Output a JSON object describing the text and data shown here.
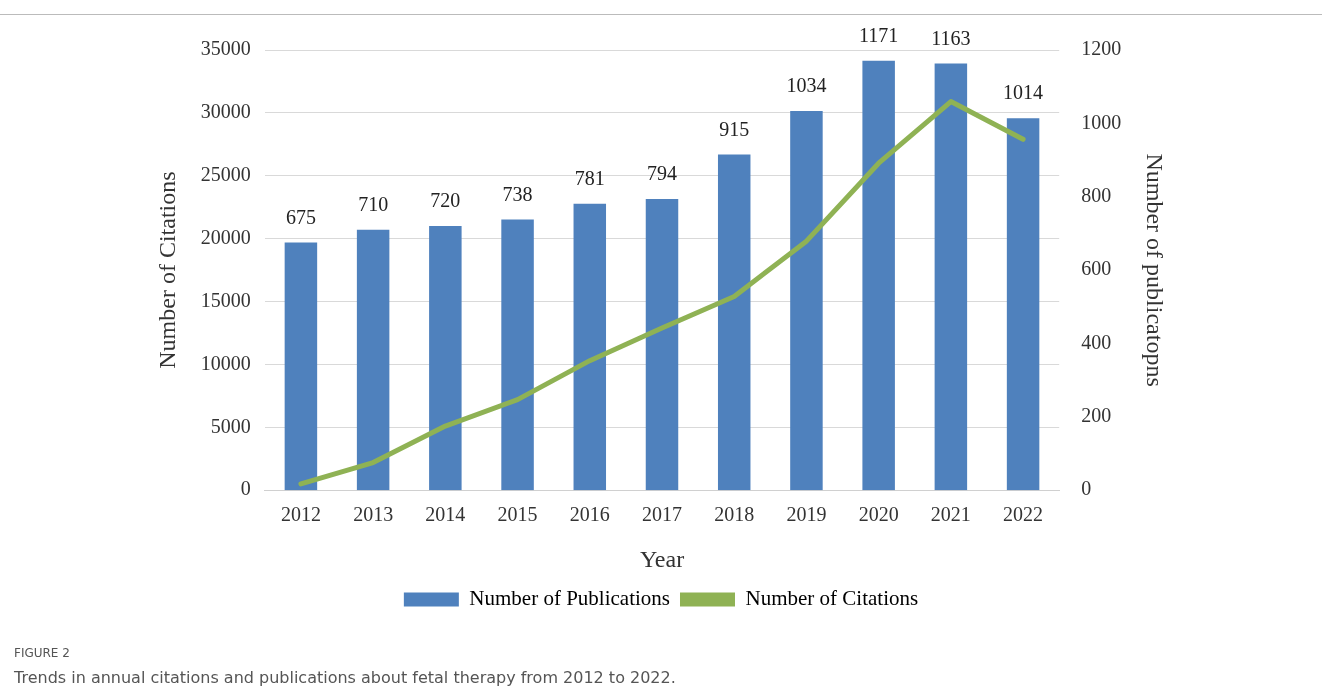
{
  "chart_data": {
    "type": "bar",
    "xlabel": "Year",
    "ylabel": "Number of Citations",
    "y2label": "Number of publicatopns",
    "categories": [
      "2012",
      "2013",
      "2014",
      "2015",
      "2016",
      "2017",
      "2018",
      "2019",
      "2020",
      "2021",
      "2022"
    ],
    "series": [
      {
        "name": "Number of Publications",
        "axis": "y2",
        "color": "#4f81bd",
        "values": [
          675,
          710,
          720,
          738,
          781,
          794,
          915,
          1034,
          1171,
          1163,
          1014
        ],
        "value_labels": [
          "675",
          "710",
          "720",
          "738",
          "781",
          "794",
          "915",
          "1034",
          "1171",
          "1163",
          "1014"
        ]
      },
      {
        "name": "Number of Citations",
        "type": "line",
        "color": "#8fb254",
        "values": [
          500,
          2200,
          5100,
          7200,
          10300,
          12900,
          15400,
          19800,
          26000,
          30900,
          27900
        ]
      }
    ],
    "ylim": [
      0,
      35000
    ],
    "yticks": [
      0,
      5000,
      10000,
      15000,
      20000,
      25000,
      30000,
      35000
    ],
    "y2lim": [
      0,
      1200
    ],
    "y2ticks": [
      0,
      200,
      400,
      600,
      800,
      1000,
      1200
    ],
    "grid": "y",
    "legend": "bottom",
    "marker": "none",
    "line_style": "solid",
    "annotations": [
      "FIGURE 2",
      "Trends in annual citations and publications about fetal therapy from 2012 to 2022."
    ]
  }
}
